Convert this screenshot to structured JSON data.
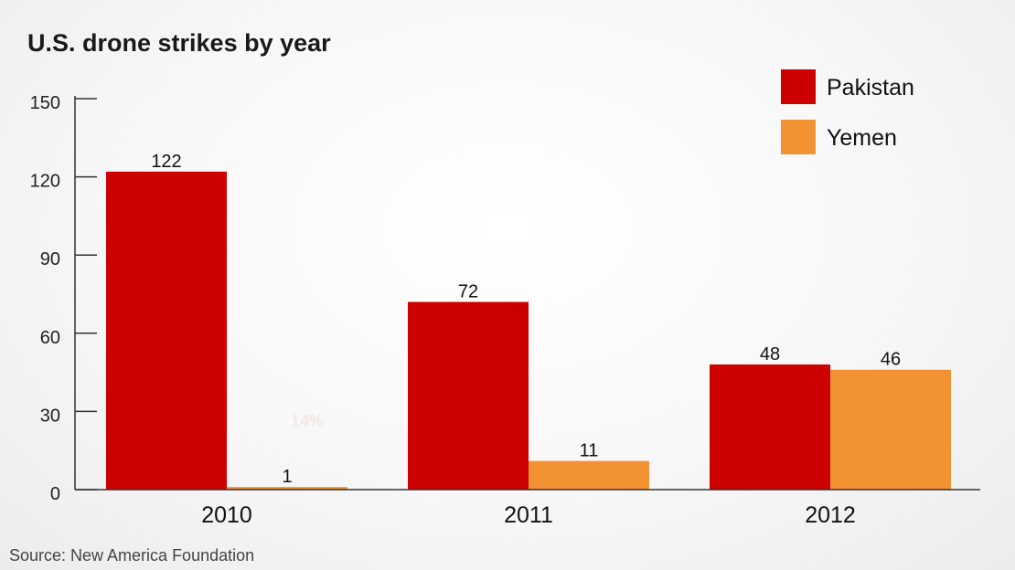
{
  "chart_data": {
    "type": "bar",
    "title": "U.S. drone strikes by year",
    "categories": [
      "2010",
      "2011",
      "2012"
    ],
    "series": [
      {
        "name": "Pakistan",
        "values": [
          122,
          72,
          48
        ],
        "color": "#cc0000"
      },
      {
        "name": "Yemen",
        "values": [
          1,
          11,
          46
        ],
        "color": "#f39233"
      }
    ],
    "data_labels": [
      [
        "122",
        "72",
        "48"
      ],
      [
        "1",
        "11",
        "46"
      ]
    ],
    "yticks": [
      0,
      30,
      60,
      90,
      120,
      150
    ],
    "ylim": [
      0,
      150
    ],
    "annotation": "14%",
    "legend_position": "top-right",
    "grid": false,
    "source": "Source: New America Foundation"
  }
}
